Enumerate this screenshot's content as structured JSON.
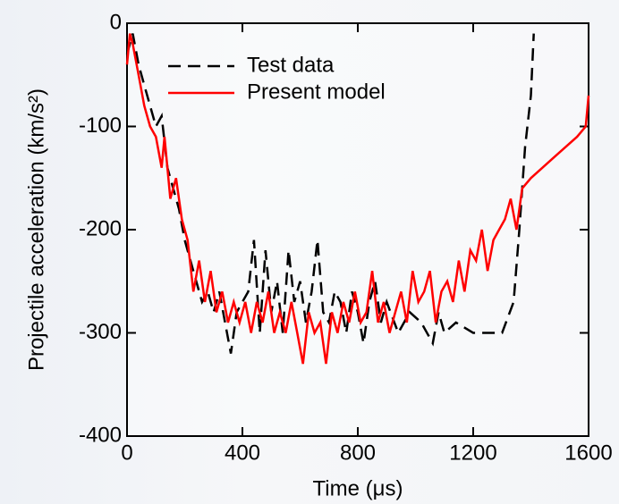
{
  "chart_data": {
    "type": "line",
    "xlabel": "Time (μs)",
    "ylabel": "Projectile acceleration (km/s²)",
    "xlim": [
      0,
      1600
    ],
    "ylim": [
      -400,
      0
    ],
    "xticks": [
      0,
      400,
      800,
      1200,
      1600
    ],
    "yticks": [
      -400,
      -300,
      -200,
      -100,
      0
    ],
    "legend": "upper left",
    "series": [
      {
        "name": "Test data",
        "color": "#000000",
        "dash": true,
        "x": [
          0,
          20,
          40,
          60,
          80,
          100,
          120,
          140,
          160,
          180,
          200,
          220,
          240,
          260,
          280,
          300,
          320,
          340,
          360,
          380,
          400,
          420,
          440,
          460,
          480,
          500,
          520,
          540,
          560,
          580,
          600,
          620,
          640,
          660,
          680,
          700,
          720,
          740,
          760,
          780,
          800,
          820,
          840,
          860,
          880,
          900,
          940,
          980,
          1020,
          1060,
          1080,
          1100,
          1140,
          1200,
          1260,
          1300,
          1340,
          1360,
          1380,
          1400,
          1410
        ],
        "values": [
          -30,
          -10,
          -40,
          -60,
          -80,
          -100,
          -90,
          -140,
          -160,
          -180,
          -210,
          -230,
          -250,
          -270,
          -260,
          -280,
          -260,
          -290,
          -320,
          -280,
          -270,
          -260,
          -210,
          -300,
          -220,
          -280,
          -250,
          -300,
          -220,
          -270,
          -250,
          -290,
          -260,
          -210,
          -280,
          -290,
          -260,
          -270,
          -300,
          -260,
          -280,
          -310,
          -270,
          -250,
          -290,
          -270,
          -300,
          -280,
          -290,
          -310,
          -280,
          -300,
          -290,
          -300,
          -300,
          -300,
          -270,
          -200,
          -120,
          -70,
          -10
        ]
      },
      {
        "name": "Present model",
        "color": "#ff0000",
        "dash": false,
        "x": [
          0,
          10,
          20,
          40,
          60,
          80,
          100,
          120,
          130,
          150,
          170,
          190,
          210,
          230,
          250,
          270,
          290,
          310,
          330,
          350,
          370,
          390,
          410,
          430,
          450,
          470,
          490,
          510,
          530,
          550,
          570,
          590,
          610,
          630,
          650,
          670,
          690,
          710,
          730,
          750,
          770,
          790,
          810,
          830,
          850,
          870,
          890,
          910,
          930,
          950,
          970,
          990,
          1010,
          1030,
          1050,
          1070,
          1090,
          1110,
          1130,
          1150,
          1170,
          1190,
          1210,
          1230,
          1250,
          1270,
          1290,
          1310,
          1330,
          1350,
          1370,
          1400,
          1440,
          1480,
          1520,
          1560,
          1590,
          1600
        ],
        "values": [
          -40,
          -10,
          -20,
          -50,
          -80,
          -100,
          -110,
          -140,
          -110,
          -170,
          -150,
          -190,
          -210,
          -260,
          -230,
          -270,
          -240,
          -280,
          -260,
          -290,
          -270,
          -290,
          -270,
          -300,
          -270,
          -290,
          -260,
          -300,
          -280,
          -300,
          -270,
          -300,
          -330,
          -280,
          -300,
          -290,
          -330,
          -280,
          -300,
          -270,
          -290,
          -260,
          -290,
          -280,
          -240,
          -290,
          -270,
          -300,
          -280,
          -260,
          -290,
          -240,
          -270,
          -260,
          -240,
          -290,
          -260,
          -250,
          -270,
          -230,
          -260,
          -220,
          -230,
          -200,
          -240,
          -210,
          -200,
          -190,
          -170,
          -200,
          -160,
          -150,
          -140,
          -130,
          -120,
          -110,
          -100,
          -70
        ]
      }
    ]
  }
}
